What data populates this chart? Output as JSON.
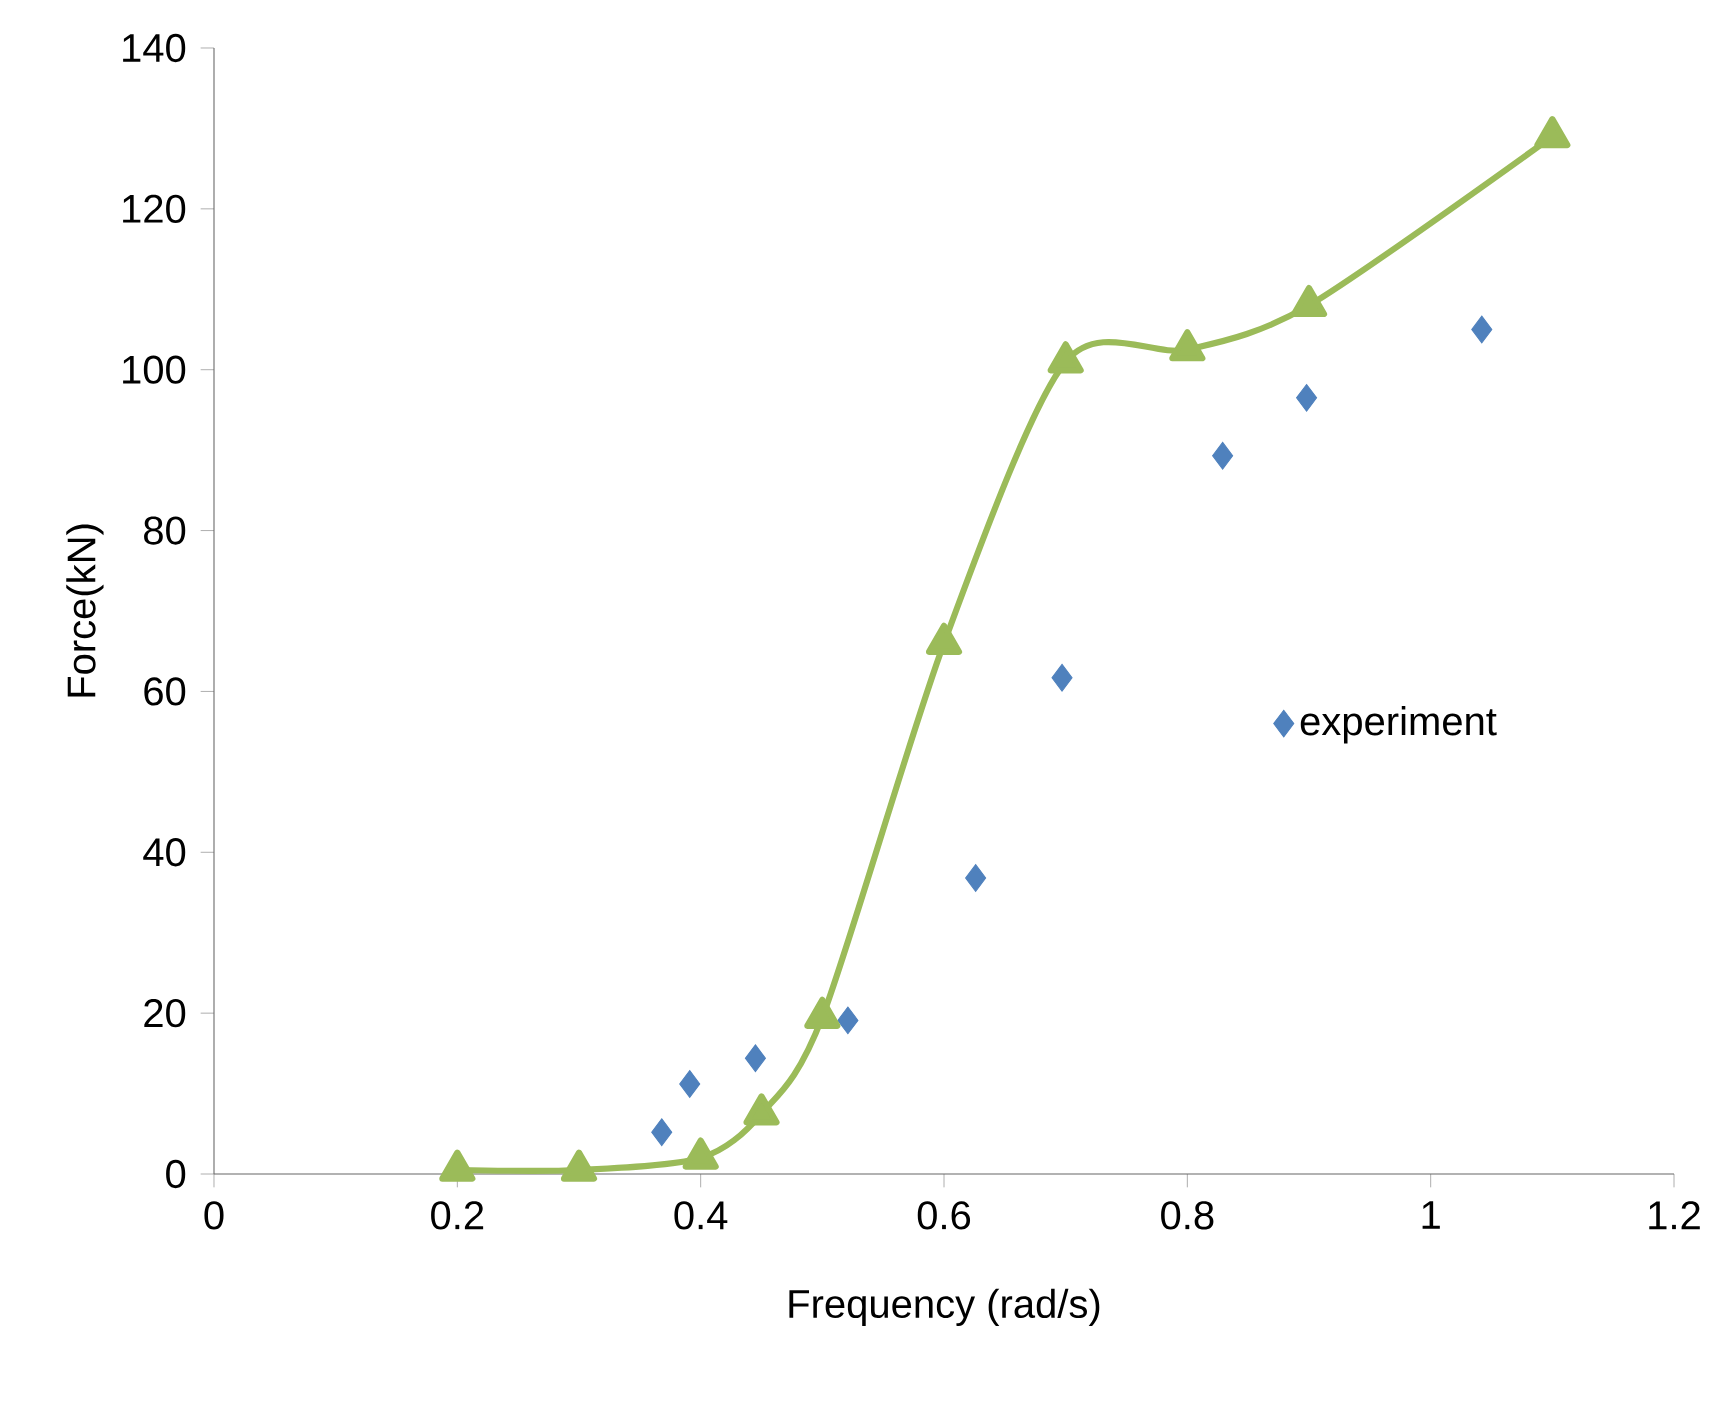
{
  "chart_data": {
    "type": "line",
    "xlabel": "Frequency (rad/s)",
    "ylabel": "Force(kN)",
    "xlim": [
      0,
      1.2
    ],
    "ylim": [
      0,
      140
    ],
    "xticks": [
      0,
      0.2,
      0.4,
      0.6,
      0.8,
      1,
      1.2
    ],
    "yticks": [
      0,
      20,
      40,
      60,
      80,
      100,
      120,
      140
    ],
    "grid": false,
    "legend": "right",
    "series": [
      {
        "name": "experiment",
        "type": "scatter",
        "marker": "diamond",
        "color": "#4f81bd",
        "x": [
          0.368,
          0.391,
          0.445,
          0.521,
          0.626,
          0.697,
          0.829,
          0.898,
          1.042
        ],
        "values": [
          5.2,
          11.2,
          14.4,
          19.1,
          36.8,
          61.7,
          89.3,
          96.5,
          105
        ]
      },
      {
        "marker": "triangle",
        "line_style": "solid",
        "color": "#9bbb59",
        "x": [
          0.2,
          0.3,
          0.4,
          0.45,
          0.5,
          0.6,
          0.7,
          0.8,
          0.9,
          1.1
        ],
        "values": [
          0.5,
          0.5,
          2,
          7.5,
          19.5,
          66,
          101,
          102.5,
          108,
          129
        ]
      }
    ]
  }
}
